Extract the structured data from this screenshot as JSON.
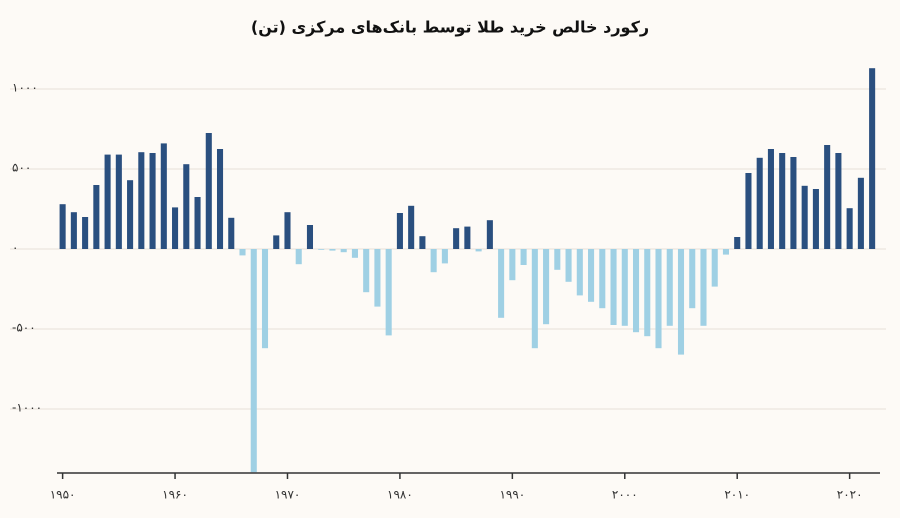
{
  "chart_data": {
    "type": "bar",
    "title": "رکورد خالص خرید طلا توسط بانک‌های مرکزی (تن)",
    "x": [
      1950,
      1951,
      1952,
      1953,
      1954,
      1955,
      1956,
      1957,
      1958,
      1959,
      1960,
      1961,
      1962,
      1963,
      1964,
      1965,
      1966,
      1967,
      1968,
      1969,
      1970,
      1971,
      1972,
      1973,
      1974,
      1975,
      1976,
      1977,
      1978,
      1979,
      1980,
      1981,
      1982,
      1983,
      1984,
      1985,
      1986,
      1987,
      1988,
      1989,
      1990,
      1991,
      1992,
      1993,
      1994,
      1995,
      1996,
      1997,
      1998,
      1999,
      2000,
      2001,
      2002,
      2003,
      2004,
      2005,
      2006,
      2007,
      2008,
      2009,
      2010,
      2011,
      2012,
      2013,
      2014,
      2015,
      2016,
      2017,
      2018,
      2019,
      2020,
      2021,
      2022
    ],
    "values": [
      280,
      230,
      200,
      400,
      590,
      590,
      430,
      605,
      600,
      660,
      260,
      530,
      325,
      725,
      625,
      195,
      -40,
      -1395,
      -620,
      85,
      230,
      -95,
      150,
      -5,
      -10,
      -20,
      -55,
      -270,
      -360,
      -540,
      225,
      270,
      80,
      -145,
      -90,
      130,
      140,
      -15,
      180,
      -430,
      -195,
      -100,
      -620,
      -470,
      -130,
      -205,
      -290,
      -330,
      -370,
      -475,
      -480,
      -520,
      -545,
      -620,
      -480,
      -660,
      -370,
      -480,
      -235,
      -35,
      75,
      475,
      570,
      625,
      600,
      575,
      395,
      375,
      650,
      600,
      255,
      445,
      1130
    ],
    "positive_color": "#2a4f7f",
    "negative_color": "#9fd0e4",
    "xlim": [
      1949.5,
      2022.7
    ],
    "xticks": [
      {
        "value": 1950,
        "label": "۱۹۵۰"
      },
      {
        "value": 1960,
        "label": "۱۹۶۰"
      },
      {
        "value": 1970,
        "label": "۱۹۷۰"
      },
      {
        "value": 1980,
        "label": "۱۹۸۰"
      },
      {
        "value": 1990,
        "label": "۱۹۹۰"
      },
      {
        "value": 2000,
        "label": "۲۰۰۰"
      },
      {
        "value": 2010,
        "label": "۲۰۱۰"
      },
      {
        "value": 2020,
        "label": "۲۰۲۰"
      }
    ],
    "ylim": [
      -1400,
      1200
    ],
    "yticks": [
      {
        "value": -1000,
        "label": "-۱۰۰۰"
      },
      {
        "value": -500,
        "label": "-۵۰۰"
      },
      {
        "value": 0,
        "label": "۰"
      },
      {
        "value": 500,
        "label": "۵۰۰"
      },
      {
        "value": 1000,
        "label": "۱۰۰۰"
      }
    ],
    "grid": true
  }
}
